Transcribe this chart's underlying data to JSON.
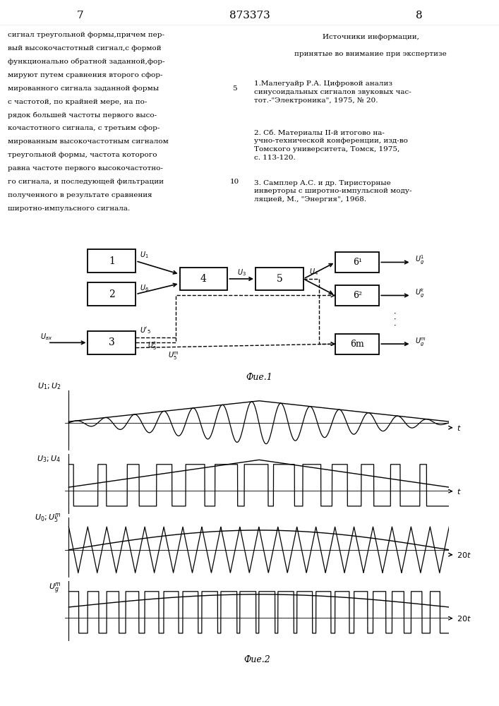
{
  "page_number_left": "7",
  "page_number_center": "873373",
  "page_number_right": "8",
  "left_text": [
    "сигнал треугольной формы,причем пер-",
    "вый высокочастотный сигнал,с формой",
    "функционально обратной заданной,фор-",
    "мируют путем сравнения второго сфор-",
    "мированного сигнала заданной формы",
    "с частотой, по крайней мере, на по-",
    "рядок большей частоты первого высо-",
    "кочастотного сигнала, с третьим сфор-",
    "мированным высокочастотным сигналом",
    "треугольной формы, частота которого",
    "равна частоте первого высокочастотно-",
    "го сигнала, и последующей фильтрации",
    "полученного в результате сравнения",
    "широтно-импульсного сигнала."
  ],
  "line_5_row": 4,
  "line_10_row": 11,
  "right_title_line1": "Источники информации,",
  "right_title_line2": "принятые во внимание при экспертизе",
  "ref1": "1.Малегуайр Р.А. Цифровой анализ\nсинусоидальных сигналов звуковых час-\nтот.-\"Электроника\", 1975, № 20.",
  "ref2": "2. Сб. Материалы II-й итогово на-\nучно-технической конференции, изд-во\nТомского университета, Томск, 1975,\nс. 113-120.",
  "ref3": "3. Самплер А.С. и др. Тиристорные\nинверторы с широтно-импульсной моду-\nляцией, М., \"Энергия\", 1968.",
  "fig1_caption": "Фие.1",
  "fig2_caption": "Фие.2",
  "background": "#ffffff",
  "text_color": "#000000",
  "font_size_body": 7.5,
  "font_size_header": 11,
  "font_size_fig": 9
}
